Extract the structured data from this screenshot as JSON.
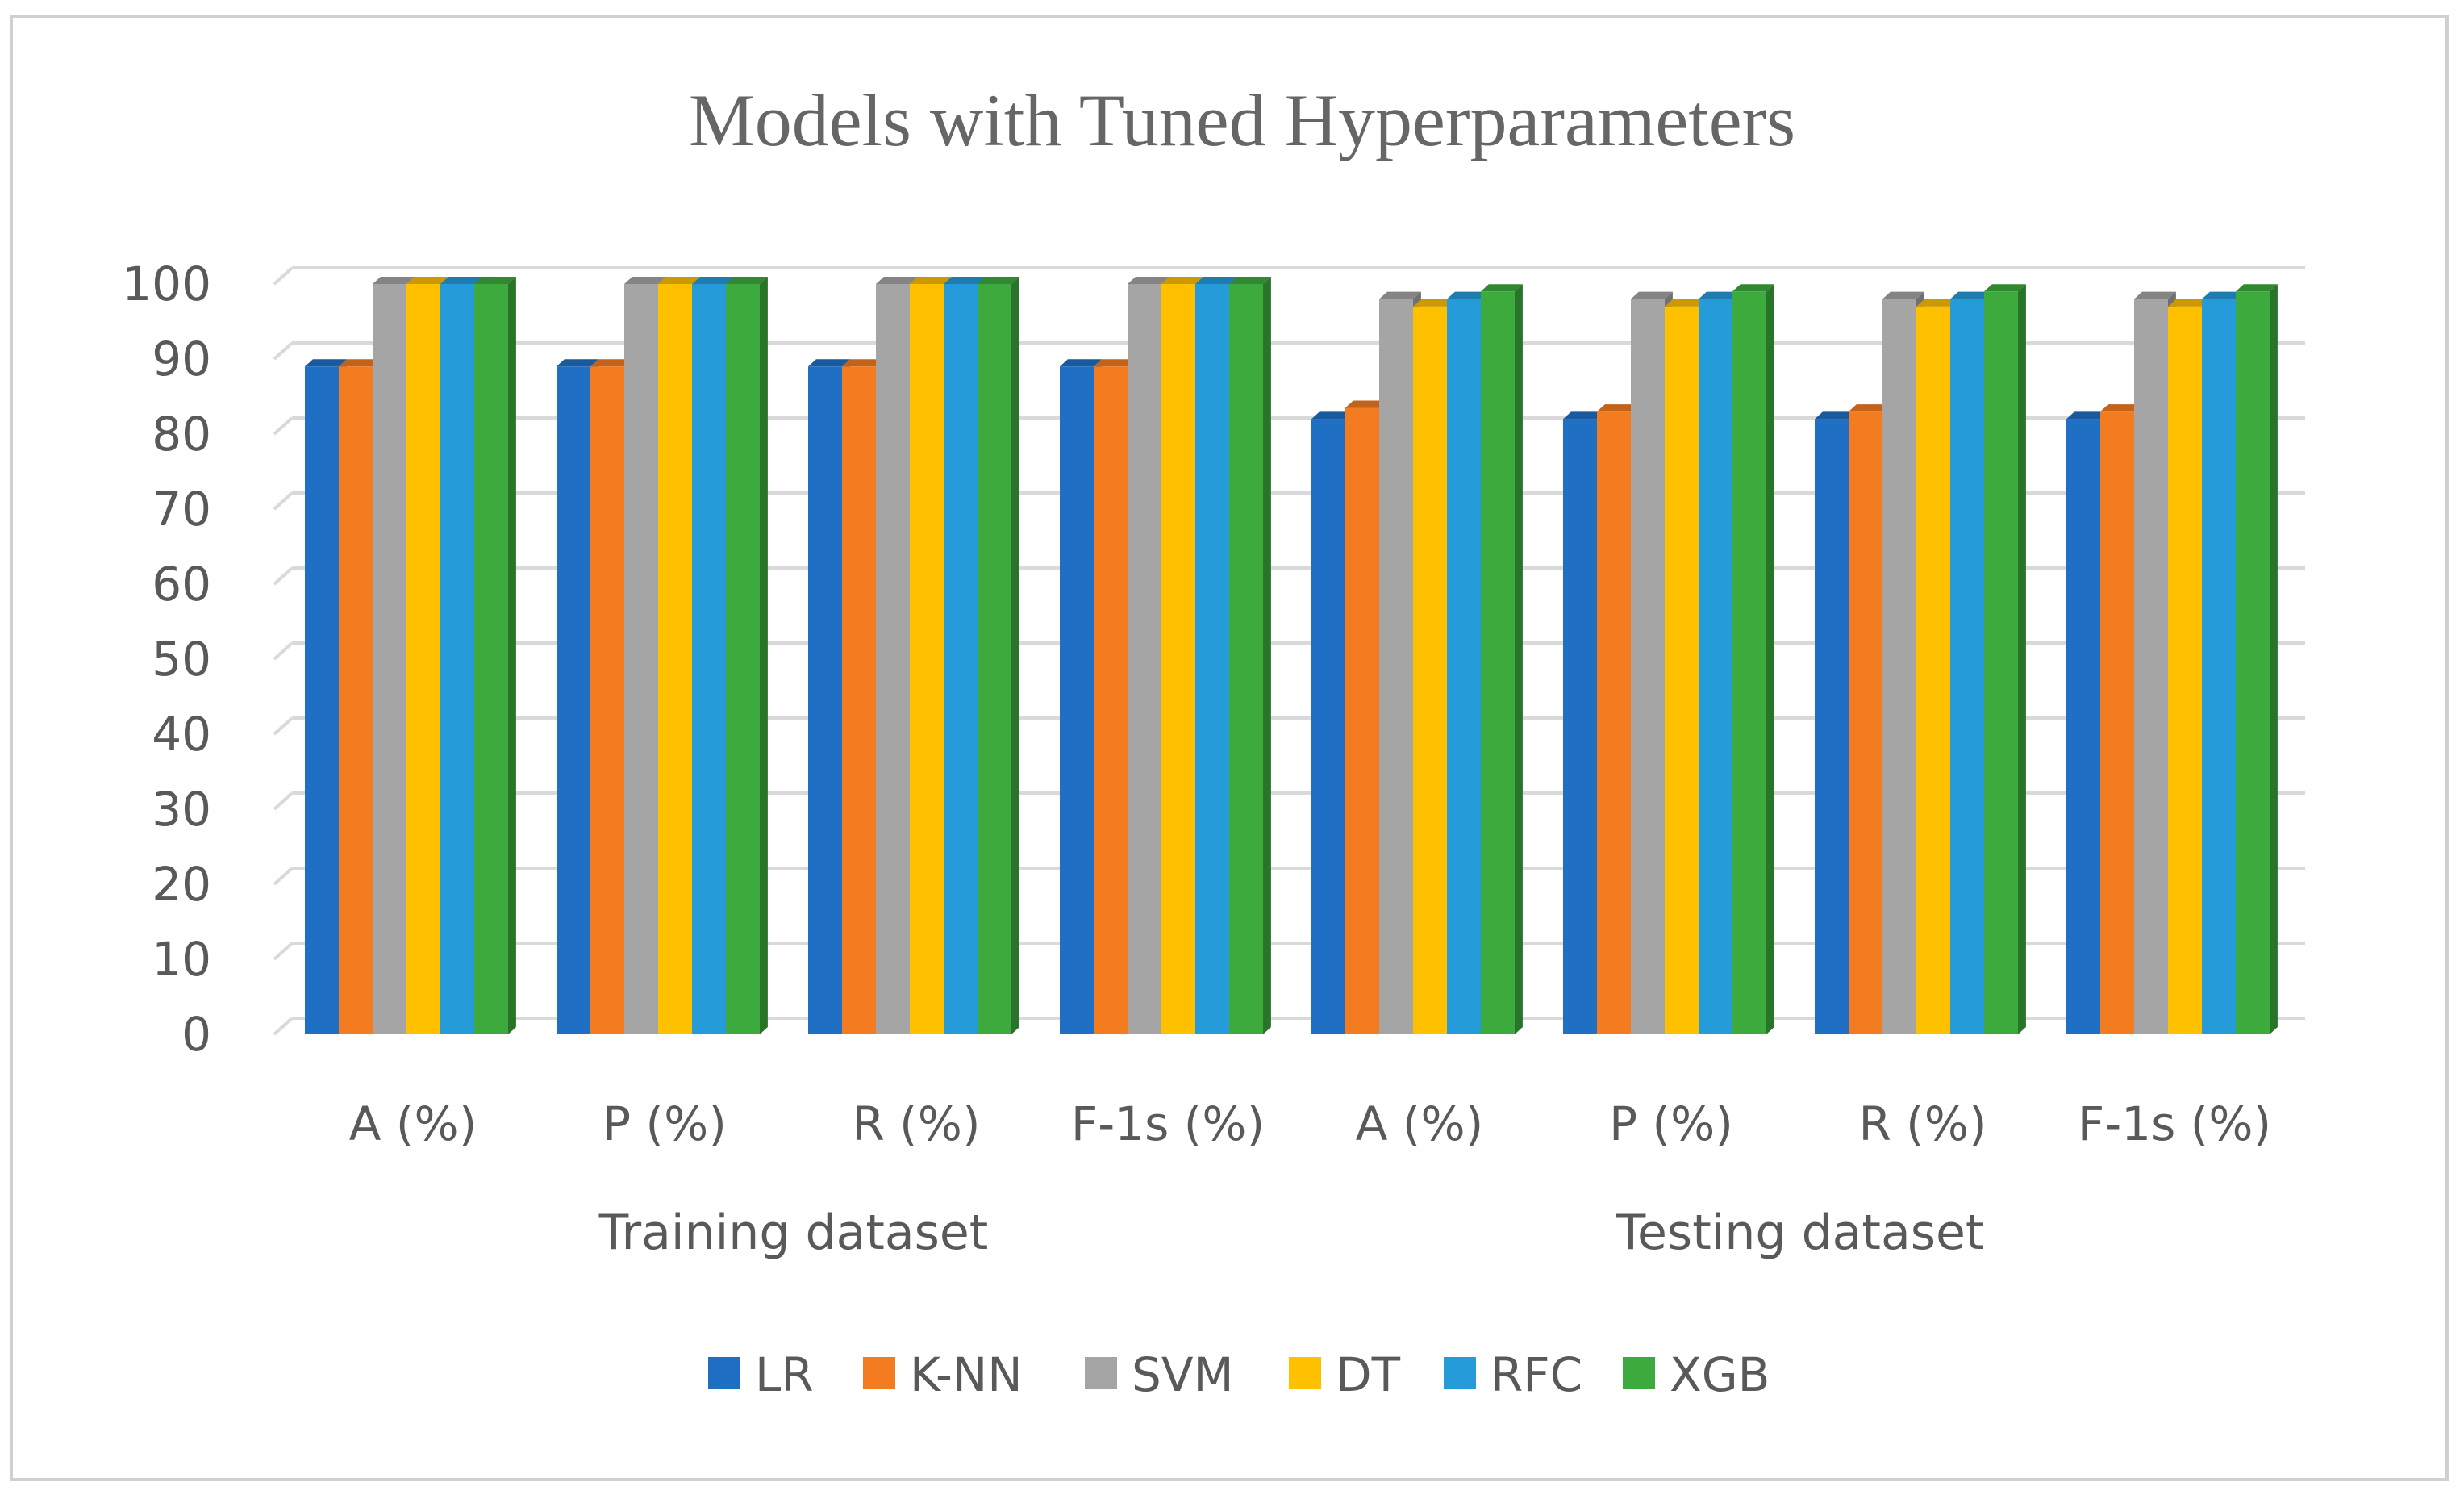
{
  "chart_data": {
    "type": "bar",
    "title": "Models with Tuned Hyperparameters",
    "xlabel": "",
    "ylabel": "",
    "ylim": [
      0,
      100
    ],
    "yticks": [
      0,
      10,
      20,
      30,
      40,
      50,
      60,
      70,
      80,
      90,
      100
    ],
    "grid": true,
    "legend_position": "bottom",
    "groups": [
      {
        "name": "Training dataset",
        "categories": [
          "A (%)",
          "P (%)",
          "R (%)",
          "F-1s (%)"
        ]
      },
      {
        "name": "Testing dataset",
        "categories": [
          "A (%)",
          "P (%)",
          "R (%)",
          "F-1s (%)"
        ]
      }
    ],
    "categories": [
      "A (%)",
      "P (%)",
      "R (%)",
      "F-1s (%)",
      "A (%)",
      "P (%)",
      "R (%)",
      "F-1s (%)"
    ],
    "series": [
      {
        "name": "LR",
        "color": "#1F6FC5",
        "values": [
          89,
          89,
          89,
          89,
          82,
          82,
          82,
          82
        ]
      },
      {
        "name": "K-NN",
        "color": "#F47C20",
        "values": [
          89,
          89,
          89,
          89,
          83.5,
          83,
          83,
          83
        ]
      },
      {
        "name": "SVM",
        "color": "#A5A5A5",
        "values": [
          100,
          100,
          100,
          100,
          98,
          98,
          98,
          98
        ]
      },
      {
        "name": "DT",
        "color": "#FFC000",
        "values": [
          100,
          100,
          100,
          100,
          97,
          97,
          97,
          97
        ]
      },
      {
        "name": "RFC",
        "color": "#259BDA",
        "values": [
          100,
          100,
          100,
          100,
          98,
          98,
          98,
          98
        ]
      },
      {
        "name": "XGB",
        "color": "#3CAA3C",
        "values": [
          100,
          100,
          100,
          100,
          99,
          99,
          99,
          99
        ]
      }
    ]
  }
}
